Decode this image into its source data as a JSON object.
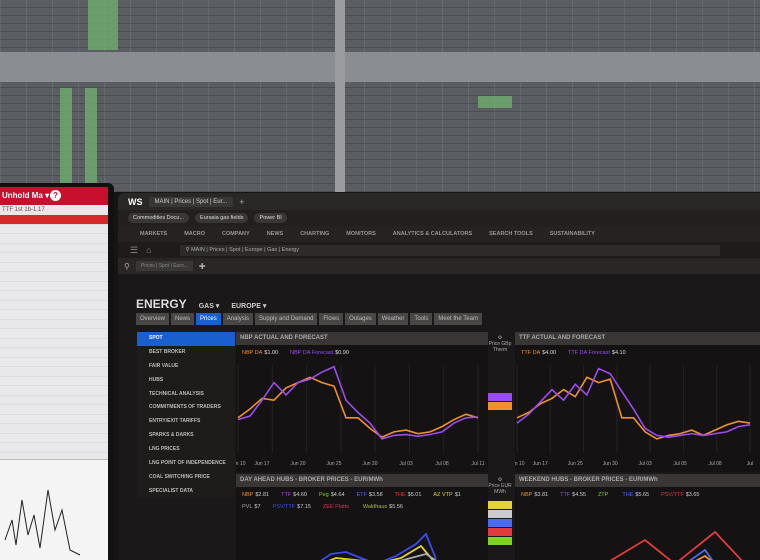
{
  "main_window": {
    "logo": "WS",
    "tab": "MAIN | Prices | Spot | Eur...",
    "bookmarks": [
      "Commodities Docu...",
      "Eurasia gas fields",
      "Power BI"
    ],
    "nav": [
      "MARKETS",
      "MACRO",
      "COMPANY",
      "NEWS",
      "CHARTING",
      "MONITORS",
      "ANALYTICS & CALCULATORS",
      "SEARCH TOOLS",
      "SUSTAINABILITY"
    ],
    "search_value": "MAIN | Prices | Spot | Europe | Gas | Energy",
    "breadcrumb": "Prices | Spot | Euro...",
    "page_title": "ENERGY",
    "filters": [
      "GAS ▾",
      "EUROPE ▾"
    ],
    "subtabs": [
      "Overview",
      "News",
      "Prices",
      "Analysis",
      "Supply and Demand",
      "Flows",
      "Outages",
      "Weather",
      "Tools",
      "Meet the Team"
    ],
    "active_subtab": "Prices",
    "sidebar": [
      "SPOT",
      "BEST BROKER",
      "FAIR VALUE",
      "HUBS",
      "TECHNICAL ANALYSIS",
      "COMMITMENTS OF TRADERS",
      "ENTRY/EXIT TARIFFS",
      "SPARKS & DARKS",
      "LNG PRICES",
      "LNG POINT OF INDEPENDENCE",
      "COAL SWITCHING PRICE",
      "SPECIALIST DATA"
    ],
    "active_sidebar": "SPOT",
    "axis_unit": "Price GBp Therm",
    "axis_unit_eur": "Price EUR MWh"
  },
  "colors": {
    "actual": "#f0922a",
    "forecast": "#9b4cf0",
    "accent": "#1a5fd0",
    "left_header": "#c8102e"
  },
  "chart_data": [
    {
      "type": "line",
      "title": "NBP ACTUAL AND FORECAST",
      "categories": [
        "Jun 10",
        "",
        "Jun 17",
        "",
        "",
        "Jun 20",
        "",
        "",
        "Jun 25",
        "",
        "",
        "Jun 30",
        "",
        "",
        "Jul 03",
        "",
        "",
        "Jul 08",
        "",
        "",
        "Jul 11"
      ],
      "series": [
        {
          "name": "NBP DA",
          "label": "$1.00",
          "color": "#f0922a",
          "values": [
            40,
            50,
            62,
            60,
            74,
            80,
            86,
            80,
            76,
            40,
            40,
            28,
            18,
            24,
            26,
            22,
            24,
            30,
            38,
            44,
            40
          ]
        },
        {
          "name": "NBP DA Forecast",
          "label": "$0.90",
          "color": "#9b4cf0",
          "values": [
            38,
            42,
            60,
            80,
            66,
            80,
            84,
            92,
            98,
            60,
            46,
            34,
            16,
            20,
            21,
            19,
            21,
            24,
            34,
            40,
            41
          ]
        }
      ]
    },
    {
      "type": "line",
      "title": "TTF ACTUAL AND FORECAST",
      "categories": [
        "Jun 10",
        "",
        "Jun 17",
        "",
        "",
        "Jun 25",
        "",
        "",
        "Jun 30",
        "",
        "",
        "Jul 03",
        "",
        "",
        "Jul 05",
        "",
        "",
        "Jul 08",
        "",
        "",
        "Jul"
      ],
      "series": [
        {
          "name": "TTF DA",
          "label": "$4.00",
          "color": "#f0922a",
          "values": [
            40,
            46,
            56,
            62,
            72,
            64,
            86,
            80,
            84,
            40,
            40,
            24,
            16,
            20,
            22,
            26,
            20,
            26,
            32,
            36,
            34
          ]
        },
        {
          "name": "TTF DA Forecast",
          "label": "$4.10",
          "color": "#9b4cf0",
          "values": [
            34,
            44,
            58,
            72,
            60,
            78,
            66,
            96,
            90,
            70,
            50,
            28,
            20,
            18,
            20,
            22,
            20,
            22,
            24,
            30,
            32
          ]
        }
      ]
    }
  ],
  "lower_panels": [
    {
      "title": "DAY AHEAD HUBS - BROKER PRICES - EUR/MWh",
      "legend": [
        {
          "name": "NBP",
          "value": "$2.81",
          "color": "#f0922a"
        },
        {
          "name": "TTF",
          "value": "$4.60",
          "color": "#9b4cf0"
        },
        {
          "name": "Peg",
          "value": "$4.64",
          "color": "#7ed321"
        },
        {
          "name": "ETF",
          "value": "$3.58",
          "color": "#4a6cf0"
        },
        {
          "name": "THE",
          "value": "$5.01",
          "color": "#e23b3b"
        },
        {
          "name": "AZ VTP",
          "value": "$1",
          "color": "#e8d23a"
        },
        {
          "name": "PVL",
          "value": "$7",
          "color": "#aaaaaa"
        },
        {
          "name": "PSV/TTF",
          "value": "$7.15",
          "color": "#3a4cf0"
        },
        {
          "name": "ZEE Platts",
          "value": "",
          "color": "#e0305a"
        },
        {
          "name": "Waldhaus",
          "value": "$5.56",
          "color": "#a8c030"
        }
      ]
    },
    {
      "title": "WEEKEND HUBS - BROKER PRICES - EUR/MWh",
      "legend": [
        {
          "name": "NBP",
          "value": "$3.81",
          "color": "#f0922a"
        },
        {
          "name": "TTF",
          "value": "$4.55",
          "color": "#9b4cf0"
        },
        {
          "name": "ZTP",
          "value": "",
          "color": "#7ed321"
        },
        {
          "name": "THE",
          "value": "$5.65",
          "color": "#4a6cf0"
        },
        {
          "name": "PSV/TTF",
          "value": "$3.65",
          "color": "#e23b3b"
        }
      ]
    }
  ],
  "left_monitor": {
    "title": "Unhold Ma ▾",
    "help": "?",
    "subtitle": "TTF 1st 1b-1.17"
  }
}
